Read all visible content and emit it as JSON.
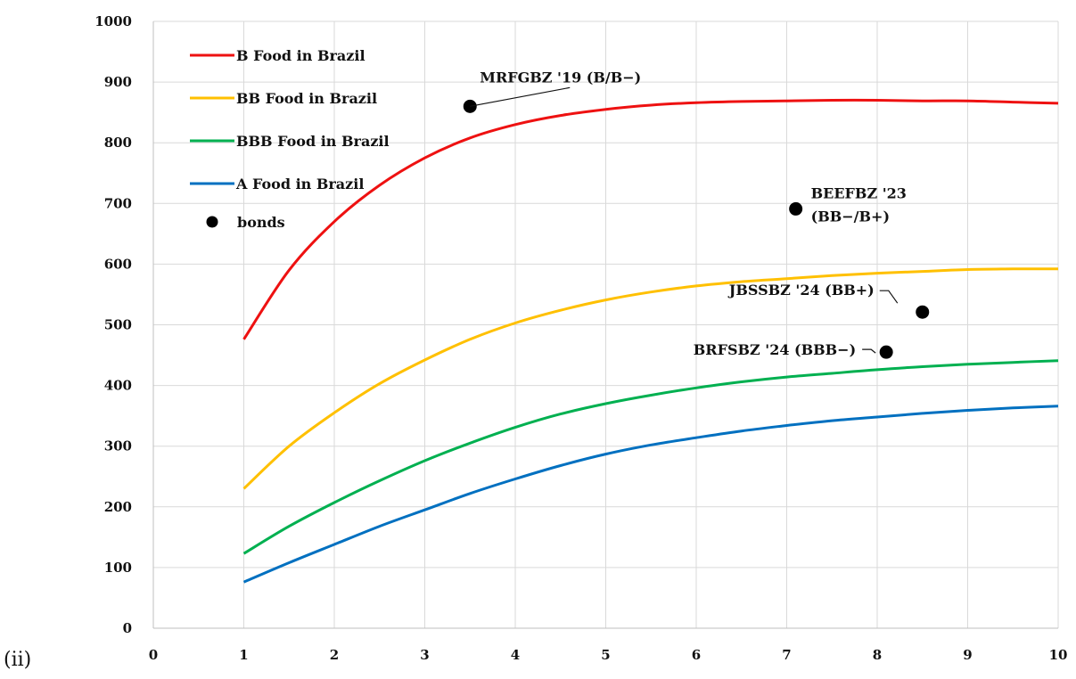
{
  "figure_label": "(ii)",
  "chart_data": {
    "type": "line",
    "title": "",
    "xlabel": "",
    "ylabel": "",
    "xlim": [
      0,
      10
    ],
    "ylim": [
      0,
      1000
    ],
    "x_ticks": [
      0,
      1,
      2,
      3,
      4,
      5,
      6,
      7,
      8,
      9,
      10
    ],
    "y_ticks": [
      0,
      100,
      200,
      300,
      400,
      500,
      600,
      700,
      800,
      900,
      1000
    ],
    "y_tick_labels": [
      "0",
      "100",
      "200",
      "300",
      "400",
      "500",
      "600",
      "700",
      "800",
      "900",
      "1000"
    ],
    "grid": true,
    "legend_position": "top-left",
    "x": [
      1,
      1.5,
      2,
      2.5,
      3,
      3.5,
      4,
      4.5,
      5,
      5.5,
      6,
      6.5,
      7,
      7.5,
      8,
      8.5,
      9,
      9.5,
      10
    ],
    "series": [
      {
        "name": "B Food in Brazil",
        "color": "#ee1111",
        "values": [
          476,
          590,
          670,
          730,
          775,
          808,
          830,
          845,
          855,
          862,
          866,
          868,
          869,
          870,
          870,
          869,
          869,
          867,
          865
        ]
      },
      {
        "name": "BB Food in Brazil",
        "color": "#ffc000",
        "values": [
          230,
          300,
          355,
          403,
          442,
          476,
          503,
          524,
          541,
          554,
          564,
          571,
          576,
          581,
          585,
          588,
          591,
          592,
          592
        ]
      },
      {
        "name": "BBB Food in Brazil",
        "color": "#00b050",
        "values": [
          123,
          168,
          207,
          243,
          276,
          305,
          331,
          353,
          370,
          384,
          396,
          406,
          414,
          420,
          426,
          431,
          435,
          438,
          441
        ]
      },
      {
        "name": "A Food in Brazil",
        "color": "#0070c0",
        "values": [
          76,
          108,
          138,
          168,
          195,
          222,
          246,
          268,
          287,
          302,
          314,
          325,
          334,
          342,
          348,
          354,
          359,
          363,
          366
        ]
      }
    ],
    "bonds": {
      "name": "bonds",
      "color": "#000000",
      "points": [
        {
          "x": 3.5,
          "y": 860,
          "label": "MRFGBZ '19 (B/B−)"
        },
        {
          "x": 7.1,
          "y": 691,
          "label_lines": [
            "BEEFBZ '23",
            "(BB−/B+)"
          ]
        },
        {
          "x": 8.5,
          "y": 521,
          "label": "JBSSBZ '24 (BB+)"
        },
        {
          "x": 8.1,
          "y": 455,
          "label": "BRFSBZ '24 (BBB−)"
        }
      ]
    }
  }
}
